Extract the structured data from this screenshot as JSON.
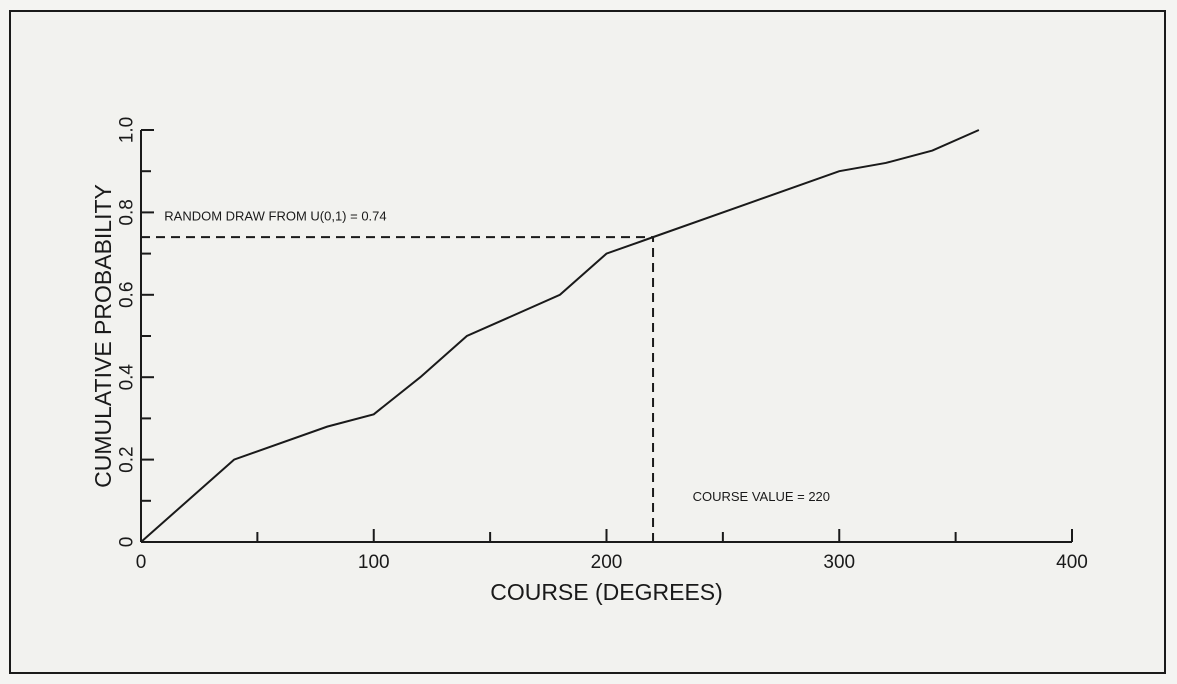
{
  "chart_data": {
    "type": "line",
    "title": "",
    "xlabel": "COURSE (DEGREES)",
    "ylabel": "CUMULATIVE PROBABILITY",
    "xlim": [
      0,
      400
    ],
    "ylim": [
      0,
      1.0
    ],
    "x_ticks": [
      {
        "value": 0,
        "label": "0"
      },
      {
        "value": 100,
        "label": "100"
      },
      {
        "value": 200,
        "label": "200"
      },
      {
        "value": 300,
        "label": "300"
      },
      {
        "value": 400,
        "label": "400"
      }
    ],
    "x_minor_ticks": [
      50,
      150,
      250,
      350
    ],
    "y_ticks": [
      {
        "value": 0,
        "label": "0"
      },
      {
        "value": 0.2,
        "label": "0.2"
      },
      {
        "value": 0.4,
        "label": "0.4"
      },
      {
        "value": 0.6,
        "label": "0.6"
      },
      {
        "value": 0.8,
        "label": "0.8"
      },
      {
        "value": 1.0,
        "label": "1.0"
      }
    ],
    "y_minor_ticks": [
      0.1,
      0.3,
      0.5,
      0.7,
      0.9
    ],
    "grid": false,
    "series": [
      {
        "x": [
          0,
          40,
          80,
          100,
          120,
          140,
          180,
          200,
          220,
          260,
          300,
          320,
          340,
          360
        ],
        "y": [
          0,
          0.2,
          0.28,
          0.31,
          0.4,
          0.5,
          0.6,
          0.7,
          0.74,
          0.82,
          0.9,
          0.92,
          0.95,
          1.0
        ],
        "color": "#1a1a1a"
      }
    ],
    "reference_lines": [
      {
        "type": "horizontal",
        "y": 0.74,
        "x_from": 0,
        "x_to": 220,
        "style": "dashed"
      },
      {
        "type": "vertical",
        "x": 220,
        "y_from": 0,
        "y_to": 0.74,
        "style": "dashed"
      }
    ],
    "annotations": [
      {
        "text": "RANDOM DRAW FROM U(0,1) = 0.74",
        "x": 10,
        "y": 0.78
      },
      {
        "text": "COURSE VALUE = 220",
        "x": 237,
        "y": 0.1
      }
    ]
  }
}
